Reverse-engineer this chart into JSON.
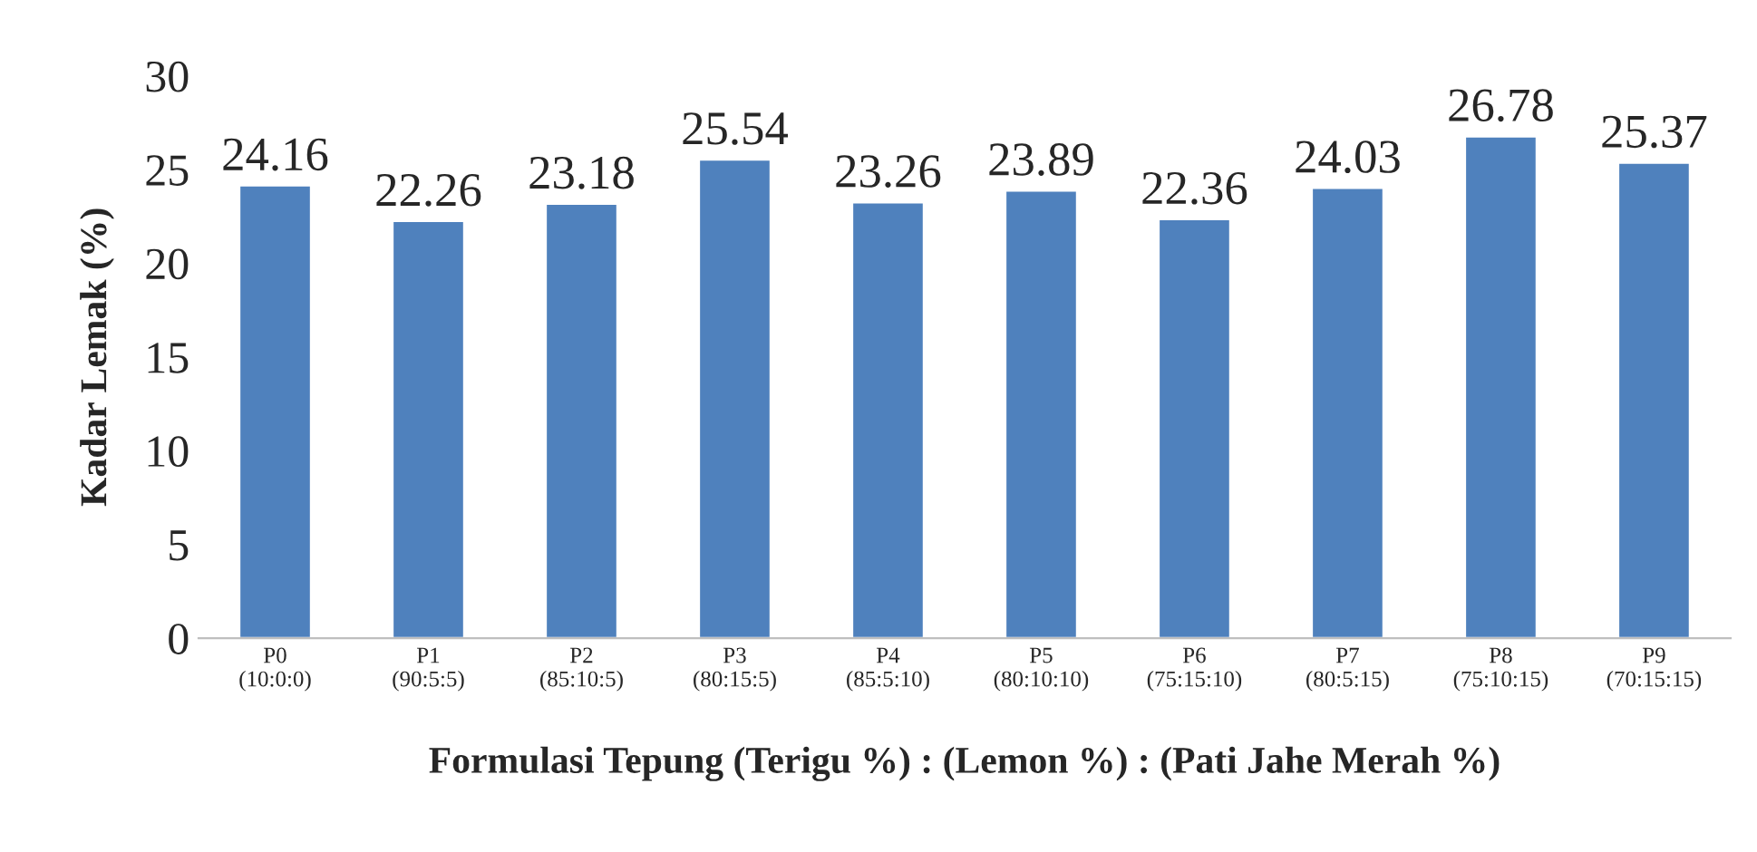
{
  "chart_data": {
    "type": "bar",
    "xlabel": "Formulasi Tepung (Terigu %) : (Lemon %) : (Pati Jahe Merah %)",
    "ylabel": "Kadar Lemak (%)",
    "categories": [
      "P0\n(10:0:0)",
      "P1\n(90:5:5)",
      "P2\n(85:10:5)",
      "P3\n(80:15:5)",
      "P4\n(85:5:10)",
      "P5\n(80:10:10)",
      "P6\n(75:15:10)",
      "P7\n(80:5:15)",
      "P8\n(75:10:15)",
      "P9\n(70:15:15)"
    ],
    "values": [
      24.16,
      22.26,
      23.18,
      25.54,
      23.26,
      23.89,
      22.36,
      24.03,
      26.78,
      25.37
    ],
    "color": "#4f81bd",
    "ylim": [
      0,
      30
    ],
    "yticks": [
      0,
      5,
      10,
      15,
      20,
      25,
      30
    ],
    "data_labels": true,
    "grid": false,
    "legend": false
  }
}
